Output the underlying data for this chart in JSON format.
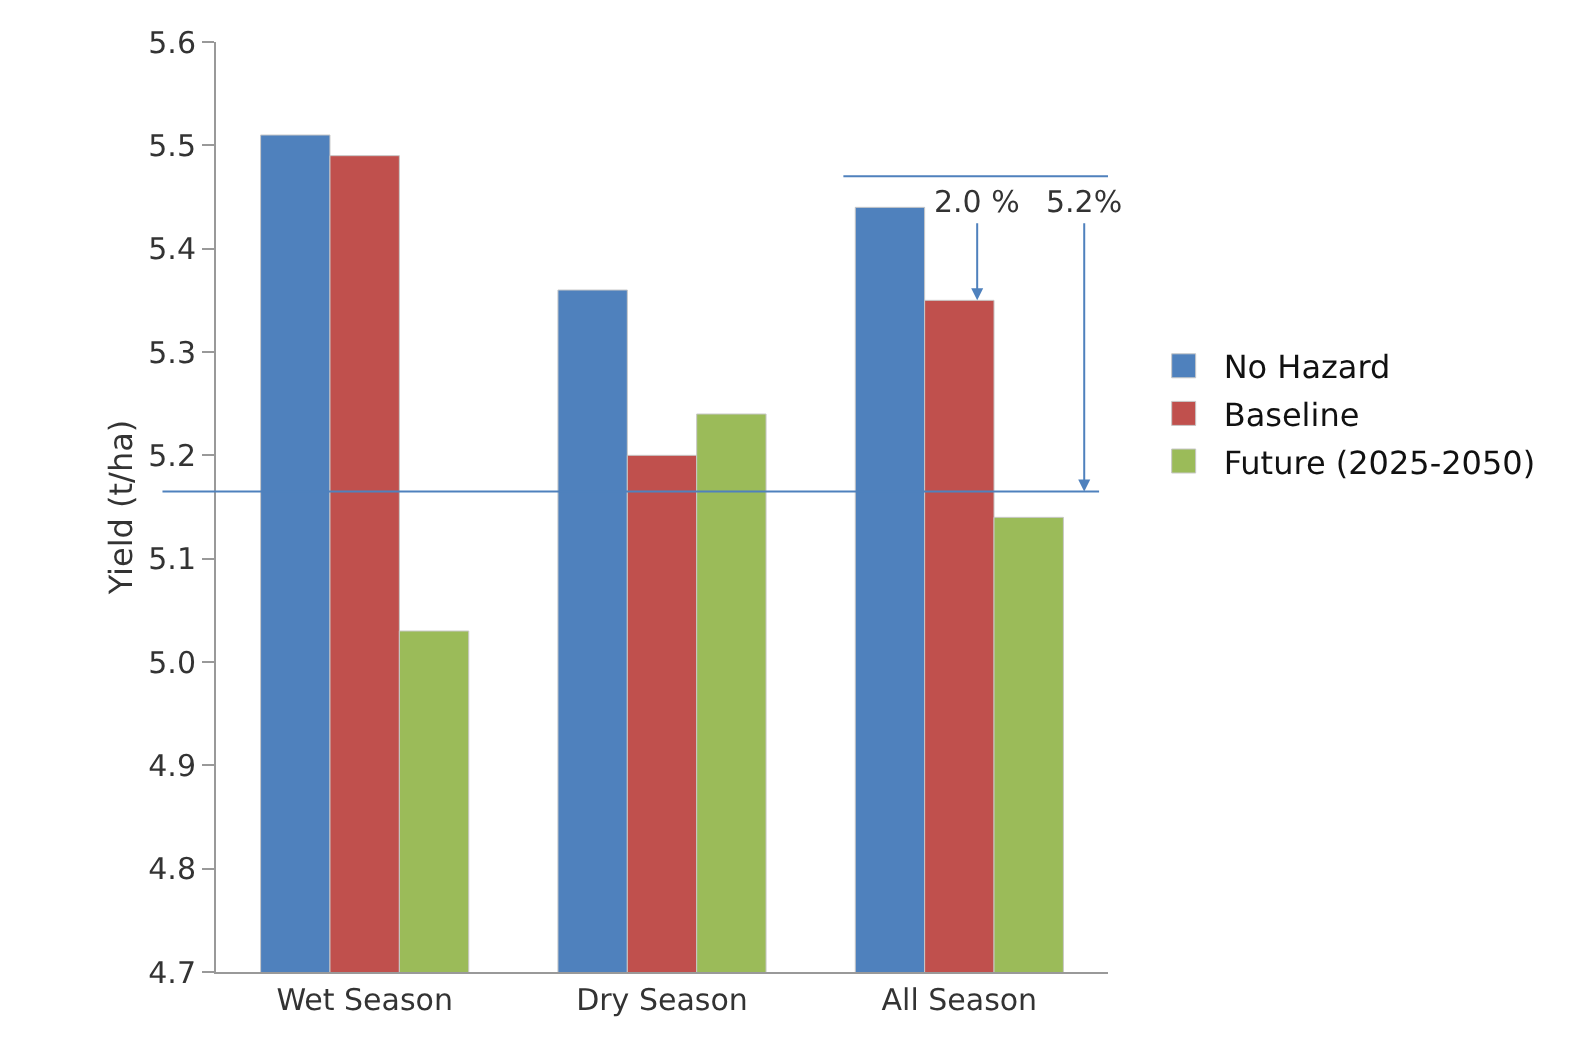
{
  "chart_data": {
    "type": "bar",
    "ylabel": "Yield (t/ha)",
    "categories": [
      "Wet Season",
      "Dry Season",
      "All Season"
    ],
    "series": [
      {
        "name": "No Hazard",
        "color": "#4f81bd",
        "values": [
          5.51,
          5.36,
          5.44
        ]
      },
      {
        "name": "Baseline",
        "color": "#c0504d",
        "values": [
          5.49,
          5.2,
          5.35
        ]
      },
      {
        "name": "Future (2025-2050)",
        "color": "#9bbb59",
        "values": [
          5.03,
          5.24,
          5.14
        ]
      }
    ],
    "ylim": [
      4.7,
      5.6
    ],
    "yticks": [
      {
        "value": 4.7,
        "label": "4.7"
      },
      4.8,
      4.9,
      {
        "value": 5.0,
        "label": "5.0"
      },
      5.1,
      5.2,
      5.3,
      5.4,
      5.5,
      5.6
    ],
    "ref_lines": [
      {
        "axis": "y",
        "value": 5.165,
        "color": "#4f81bd"
      },
      {
        "axis": "y",
        "value": 5.47,
        "color": "#4f81bd"
      }
    ],
    "annotations": [
      {
        "text": "2.0 %",
        "x": "All Season",
        "y": 5.35
      },
      {
        "text": "5.2%",
        "y": 5.165
      }
    ],
    "grid": false,
    "legend": "right"
  }
}
